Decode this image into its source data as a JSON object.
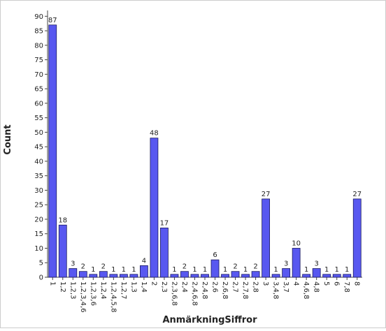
{
  "chart_data": {
    "type": "bar",
    "x_label": "AnmärkningSiffror",
    "y_label": "Count",
    "categories": [
      "1",
      "1,2",
      "1,2,3",
      "1,2,3,4,6",
      "1,2,3,6",
      "1,2,4",
      "1,2,4,5,8",
      "1,2,7",
      "1,3",
      "1,4",
      "2",
      "2,3",
      "2,3,6,8",
      "2,4",
      "2,4,6,8",
      "2,4,8",
      "2,6",
      "2,6,8",
      "2,7",
      "2,7,8",
      "2,8",
      "3",
      "3,4,8",
      "3,7",
      "4",
      "4,6,8",
      "4,8",
      "5",
      "6",
      "7,8",
      "8"
    ],
    "values": [
      87,
      18,
      3,
      2,
      1,
      2,
      1,
      1,
      1,
      4,
      48,
      17,
      1,
      2,
      1,
      1,
      6,
      1,
      2,
      1,
      2,
      27,
      1,
      3,
      10,
      1,
      3,
      1,
      1,
      1,
      27
    ],
    "color": "#5858f0",
    "ylim": [
      0,
      92
    ],
    "yticks": [
      0,
      5,
      10,
      15,
      20,
      25,
      30,
      35,
      40,
      45,
      50,
      55,
      60,
      65,
      70,
      75,
      80,
      85,
      90
    ]
  }
}
